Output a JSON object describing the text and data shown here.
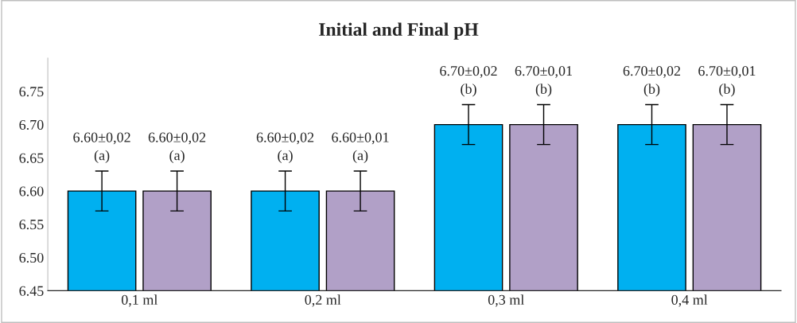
{
  "chart_data": {
    "type": "bar",
    "title": "Initial and Final pH",
    "categories": [
      "0,1 ml",
      "0,2 ml",
      "0,3 ml",
      "0,4 ml"
    ],
    "series": [
      {
        "color": "#00b0f0",
        "values": [
          6.6,
          6.6,
          6.7,
          6.7
        ],
        "errors": [
          0.03,
          0.03,
          0.03,
          0.03
        ],
        "value_labels": [
          "6.60±0,02\n(a)",
          "6.60±0,02\n(a)",
          "6.70±0,02\n(b)",
          "6.70±0,02\n(b)"
        ]
      },
      {
        "color": "#b1a0c7",
        "values": [
          6.6,
          6.6,
          6.7,
          6.7
        ],
        "errors": [
          0.03,
          0.03,
          0.03,
          0.03
        ],
        "value_labels": [
          "6.60±0,02\n(a)",
          "6.60±0,01\n(a)",
          "6.70±0,01\n(b)",
          "6.70±0,01\n(b)"
        ]
      }
    ],
    "ylim": [
      6.45,
      6.8
    ],
    "yticks": [
      6.45,
      {
        "value": 6.5,
        "label": "6.50"
      },
      6.55,
      {
        "value": 6.6,
        "label": "6.60"
      },
      6.65,
      {
        "value": 6.7,
        "label": "6.70"
      },
      6.75
    ],
    "grid": false,
    "legend": false
  }
}
